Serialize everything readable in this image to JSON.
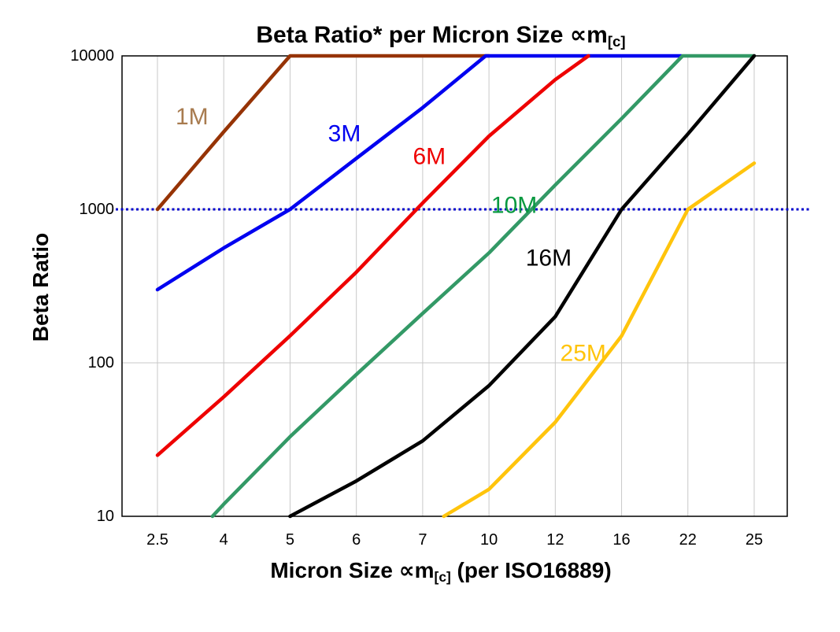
{
  "chart_data": {
    "type": "line",
    "title_main": "Beta Ratio* per Micron Size ∝m",
    "title_sub": "[c]",
    "ylabel": "Beta Ratio",
    "xlabel_main": "Micron Size ∝m",
    "xlabel_sub": "[c]",
    "xlabel_tail": " (per ISO16889)",
    "x_categories": [
      "2.5",
      "4",
      "5",
      "6",
      "7",
      "10",
      "12",
      "16",
      "22",
      "25"
    ],
    "y_ticks": [
      "10",
      "100",
      "1000",
      "10000"
    ],
    "y_scale": "log",
    "ylim": [
      10,
      10000
    ],
    "grid_on": true,
    "grid_color": "#C8C8C8",
    "background_color": "#FFFFFF",
    "reference_line": {
      "value": 1000,
      "color": "#0000CC",
      "style": "dotted"
    },
    "series": [
      {
        "name": "1M",
        "color": "#963305",
        "label_color": "#A87B4F",
        "label": {
          "xi": 0.52,
          "v": 4000
        },
        "points": [
          [
            0,
            1000
          ],
          [
            1,
            3200
          ],
          [
            2,
            10000
          ],
          [
            5,
            10000
          ]
        ]
      },
      {
        "name": "3M",
        "color": "#0000F0",
        "label_color": "#0000F0",
        "label": {
          "xi": 2.82,
          "v": 3100
        },
        "points": [
          [
            0,
            300
          ],
          [
            1,
            560
          ],
          [
            2,
            1000
          ],
          [
            3,
            2150
          ],
          [
            4,
            4600
          ],
          [
            4.95,
            10000
          ],
          [
            7.9,
            10000
          ]
        ]
      },
      {
        "name": "6M",
        "color": "#EE0000",
        "label_color": "#EE0000",
        "label": {
          "xi": 4.1,
          "v": 2200
        },
        "points": [
          [
            0,
            25
          ],
          [
            1,
            60
          ],
          [
            2,
            150
          ],
          [
            3,
            390
          ],
          [
            4,
            1100
          ],
          [
            5,
            3000
          ],
          [
            6,
            7000
          ],
          [
            6.5,
            10000
          ]
        ]
      },
      {
        "name": "10M",
        "color": "#339966",
        "label_color": "#089940",
        "label": {
          "xi": 5.38,
          "v": 1060
        },
        "points": [
          [
            0.83,
            10
          ],
          [
            1,
            12
          ],
          [
            2,
            33
          ],
          [
            3,
            84
          ],
          [
            4,
            210
          ],
          [
            5,
            520
          ],
          [
            6,
            1440
          ],
          [
            7,
            3900
          ],
          [
            7.92,
            10000
          ],
          [
            9,
            10000
          ]
        ]
      },
      {
        "name": "16M",
        "color": "#000000",
        "label_color": "#000000",
        "label": {
          "xi": 5.9,
          "v": 480
        },
        "points": [
          [
            2,
            10
          ],
          [
            3,
            17
          ],
          [
            4,
            31
          ],
          [
            5,
            71
          ],
          [
            6,
            200
          ],
          [
            7,
            1000
          ],
          [
            8,
            3100
          ],
          [
            9,
            10000
          ]
        ]
      },
      {
        "name": "25M",
        "color": "#FFC40C",
        "label_color": "#FFC40C",
        "label": {
          "xi": 6.42,
          "v": 115
        },
        "points": [
          [
            4.32,
            10
          ],
          [
            5,
            15
          ],
          [
            6,
            41
          ],
          [
            7,
            150
          ],
          [
            8,
            1000
          ],
          [
            9,
            2000
          ]
        ]
      }
    ]
  }
}
